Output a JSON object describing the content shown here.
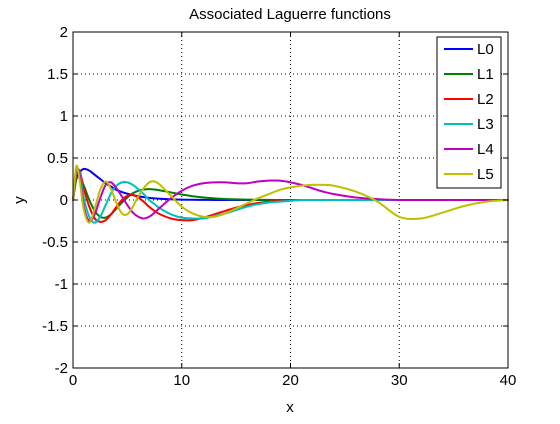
{
  "chart_data": {
    "type": "line",
    "title": "Associated Laguerre functions",
    "xlabel": "x",
    "ylabel": "y",
    "xlim": [
      0,
      40
    ],
    "ylim": [
      -2,
      2
    ],
    "xticks": [
      0,
      10,
      20,
      30,
      40
    ],
    "yticks": [
      -2,
      -1.5,
      -1,
      -0.5,
      0,
      0.5,
      1,
      1.5,
      2
    ],
    "xtick_labels": [
      "0",
      "10",
      "20",
      "30",
      "40"
    ],
    "ytick_labels": [
      "-2",
      "-1.5",
      "-1",
      "-0.5",
      "0",
      "0.5",
      "1",
      "1.5",
      "2"
    ],
    "grid": true,
    "grid_style": "dotted",
    "legend_position": "top-right",
    "x": [
      0,
      0.3,
      0.6,
      1,
      1.5,
      2,
      2.5,
      3,
      3.5,
      4,
      4.5,
      5,
      5.5,
      6,
      6.5,
      7,
      7.5,
      8,
      9,
      10,
      11,
      12,
      13,
      14,
      15,
      16,
      17,
      18,
      19,
      20,
      21,
      22,
      23,
      24,
      26,
      28,
      30,
      32,
      34,
      36,
      38,
      40
    ],
    "series": [
      {
        "name": "L0",
        "color": "#0000ff",
        "values": [
          0,
          0.26,
          0.33,
          0.37,
          0.35,
          0.3,
          0.25,
          0.2,
          0.16,
          0.12,
          0.095,
          0.075,
          0.058,
          0.045,
          0.034,
          0.026,
          0.02,
          0.015,
          0.0085,
          0.0045,
          0.0025,
          0.0013,
          0.0007,
          0.0004,
          0.0002,
          0.0001,
          0,
          0,
          0,
          0,
          0,
          0,
          0,
          0,
          0,
          0,
          0,
          0,
          0,
          0,
          0,
          0
        ]
      },
      {
        "name": "L1",
        "color": "#008000",
        "values": [
          0,
          0.24,
          0.27,
          0.17,
          0.0,
          -0.13,
          -0.2,
          -0.21,
          -0.17,
          -0.1,
          -0.03,
          0.03,
          0.08,
          0.11,
          0.125,
          0.13,
          0.125,
          0.115,
          0.09,
          0.065,
          0.045,
          0.03,
          0.02,
          0.012,
          0.007,
          0.004,
          0.002,
          0.001,
          0,
          0,
          0,
          0,
          0,
          0,
          0,
          0,
          0,
          0,
          0,
          0,
          0,
          0
        ]
      },
      {
        "name": "L2",
        "color": "#ff0000",
        "values": [
          0,
          0.3,
          0.35,
          0.13,
          -0.08,
          -0.22,
          -0.26,
          -0.24,
          -0.17,
          -0.08,
          0.0,
          0.05,
          0.06,
          0.03,
          -0.02,
          -0.08,
          -0.13,
          -0.17,
          -0.22,
          -0.24,
          -0.24,
          -0.21,
          -0.17,
          -0.13,
          -0.09,
          -0.06,
          -0.035,
          -0.02,
          -0.01,
          -0.005,
          0,
          0,
          0,
          0,
          0,
          0,
          0,
          0,
          0,
          0,
          0,
          0
        ]
      },
      {
        "name": "L3",
        "color": "#00bfbf",
        "values": [
          0,
          0.33,
          0.33,
          0.02,
          -0.2,
          -0.27,
          -0.2,
          -0.06,
          0.08,
          0.17,
          0.21,
          0.21,
          0.18,
          0.13,
          0.07,
          0.0,
          -0.05,
          -0.1,
          -0.17,
          -0.21,
          -0.22,
          -0.22,
          -0.19,
          -0.16,
          -0.12,
          -0.08,
          -0.05,
          -0.03,
          -0.02,
          -0.01,
          0,
          0,
          0,
          0,
          0,
          0,
          0,
          0,
          0,
          0,
          0,
          0
        ]
      },
      {
        "name": "L4",
        "color": "#bf00bf",
        "values": [
          0,
          0.36,
          0.3,
          -0.08,
          -0.25,
          -0.17,
          0.02,
          0.18,
          0.21,
          0.14,
          0.04,
          -0.06,
          -0.15,
          -0.2,
          -0.22,
          -0.2,
          -0.15,
          -0.09,
          0.02,
          0.11,
          0.17,
          0.2,
          0.21,
          0.21,
          0.2,
          0.2,
          0.22,
          0.23,
          0.23,
          0.21,
          0.18,
          0.14,
          0.1,
          0.07,
          0.03,
          0.01,
          0,
          0,
          0,
          0,
          0,
          0
        ]
      },
      {
        "name": "L5",
        "color": "#bfbf00",
        "values": [
          0,
          0.4,
          0.25,
          -0.12,
          -0.27,
          -0.1,
          0.12,
          0.22,
          0.13,
          -0.04,
          -0.16,
          -0.17,
          -0.08,
          0.04,
          0.14,
          0.21,
          0.22,
          0.18,
          0.05,
          -0.08,
          -0.16,
          -0.2,
          -0.2,
          -0.16,
          -0.1,
          -0.04,
          0.02,
          0.07,
          0.12,
          0.15,
          0.17,
          0.18,
          0.18,
          0.17,
          0.1,
          -0.02,
          -0.2,
          -0.22,
          -0.15,
          -0.07,
          -0.02,
          0
        ]
      }
    ]
  }
}
